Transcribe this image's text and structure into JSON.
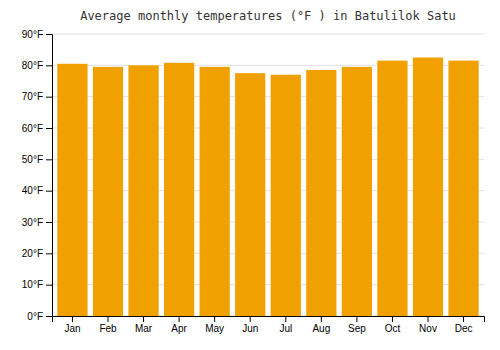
{
  "chart_data": {
    "type": "bar",
    "title": "Average monthly temperatures (°F ) in Batulilok Satu",
    "categories": [
      "Jan",
      "Feb",
      "Mar",
      "Apr",
      "May",
      "Jun",
      "Jul",
      "Aug",
      "Sep",
      "Oct",
      "Nov",
      "Dec"
    ],
    "values": [
      80.5,
      79.5,
      80.0,
      80.8,
      79.5,
      77.5,
      77.0,
      78.5,
      79.5,
      81.5,
      82.5,
      81.5
    ],
    "color": "#F0A000",
    "ylim": [
      0,
      90
    ],
    "yticks": [
      {
        "value": 0,
        "label": "0°F"
      },
      {
        "value": 10,
        "label": "10°F"
      },
      {
        "value": 20,
        "label": "20°F"
      },
      {
        "value": 30,
        "label": "30°F"
      },
      {
        "value": 40,
        "label": "40°F"
      },
      {
        "value": 50,
        "label": "50°F"
      },
      {
        "value": 60,
        "label": "60°F"
      },
      {
        "value": 70,
        "label": "70°F"
      },
      {
        "value": 80,
        "label": "80°F"
      },
      {
        "value": 90,
        "label": "90°F"
      }
    ],
    "grid": true
  }
}
